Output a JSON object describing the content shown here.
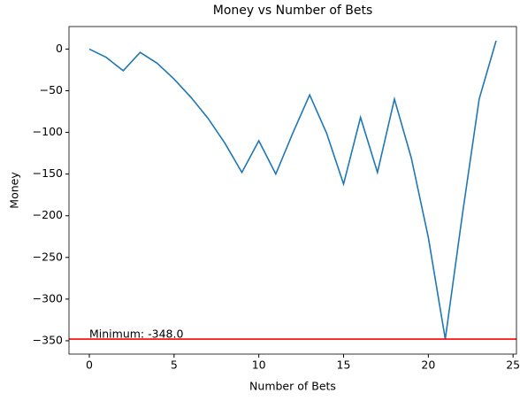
{
  "chart_data": {
    "type": "line",
    "title": "Money vs Number of Bets",
    "x_label": "Number of Bets",
    "y_label": "Money",
    "x": [
      0,
      1,
      2,
      3,
      4,
      5,
      6,
      7,
      8,
      9,
      10,
      11,
      12,
      13,
      14,
      15,
      16,
      17,
      18,
      19,
      20,
      21,
      22,
      23,
      24
    ],
    "series": [
      {
        "name": "Money",
        "color": "#1f77b4",
        "values": [
          0,
          -10,
          -26,
          -4,
          -17,
          -36,
          -58,
          -83,
          -113,
          -148,
          -110,
          -150,
          -101,
          -55,
          -101,
          -162,
          -82,
          -148,
          -60,
          -131,
          -226,
          -348,
          -200,
          -60,
          10
        ]
      }
    ],
    "xlim": [
      -1.2,
      25.2
    ],
    "ylim": [
      -366,
      27
    ],
    "xticks": [
      0,
      5,
      10,
      15,
      20,
      25
    ],
    "yticks": [
      {
        "value": -350,
        "label": "−350"
      },
      {
        "value": -300,
        "label": "−300"
      },
      {
        "value": -250,
        "label": "−250"
      },
      {
        "value": -200,
        "label": "−200"
      },
      {
        "value": -150,
        "label": "−150"
      },
      {
        "value": -100,
        "label": "−100"
      },
      {
        "value": -50,
        "label": "−50"
      },
      0
    ],
    "hline": {
      "value": -348,
      "color": "#ff0000"
    },
    "annotation": {
      "text": "Minimum: -348.0",
      "x": 0,
      "y": -348
    },
    "grid": false
  }
}
